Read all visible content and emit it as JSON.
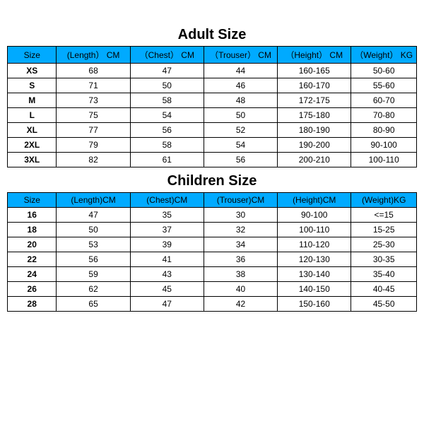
{
  "header_bg": "#00aaff",
  "border_color": "#000000",
  "adult": {
    "title": "Adult Size",
    "columns": [
      "Size",
      "(Length） CM",
      "（Chest） CM",
      "（Trouser） CM",
      "（Height） CM",
      "（Weight） KG"
    ],
    "rows": [
      [
        "XS",
        "68",
        "47",
        "44",
        "160-165",
        "50-60"
      ],
      [
        "S",
        "71",
        "50",
        "46",
        "160-170",
        "55-60"
      ],
      [
        "M",
        "73",
        "58",
        "48",
        "172-175",
        "60-70"
      ],
      [
        "L",
        "75",
        "54",
        "50",
        "175-180",
        "70-80"
      ],
      [
        "XL",
        "77",
        "56",
        "52",
        "180-190",
        "80-90"
      ],
      [
        "2XL",
        "79",
        "58",
        "54",
        "190-200",
        "90-100"
      ],
      [
        "3XL",
        "82",
        "61",
        "56",
        "200-210",
        "100-110"
      ]
    ]
  },
  "children": {
    "title": "Children Size",
    "columns": [
      "Size",
      "(Length)CM",
      "(Chest)CM",
      "(Trouser)CM",
      "(Height)CM",
      "(Weight)KG"
    ],
    "rows": [
      [
        "16",
        "47",
        "35",
        "30",
        "90-100",
        "<=15"
      ],
      [
        "18",
        "50",
        "37",
        "32",
        "100-110",
        "15-25"
      ],
      [
        "20",
        "53",
        "39",
        "34",
        "110-120",
        "25-30"
      ],
      [
        "22",
        "56",
        "41",
        "36",
        "120-130",
        "30-35"
      ],
      [
        "24",
        "59",
        "43",
        "38",
        "130-140",
        "35-40"
      ],
      [
        "26",
        "62",
        "45",
        "40",
        "140-150",
        "40-45"
      ],
      [
        "28",
        "65",
        "47",
        "42",
        "150-160",
        "45-50"
      ]
    ]
  }
}
